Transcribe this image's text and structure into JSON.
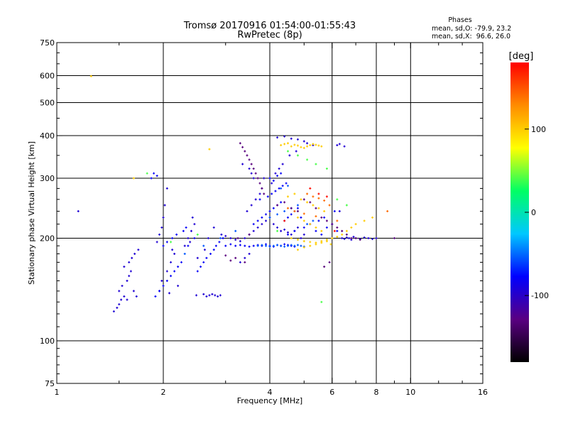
{
  "title": "Tromsø 20170916 01:54:00-01:55:43",
  "subtitle": "RwPretec (8p)",
  "phases_box": {
    "heading": "Phases",
    "line_o": "mean, sd,O: -79.9, 23.2",
    "line_x": "mean, sd,X:  96.6, 26.0"
  },
  "chart_data": {
    "type": "scatter",
    "xlabel": "Frequency [MHz]",
    "ylabel": "Stationary phase Virtual Height [km]",
    "x_scale": "log",
    "y_scale": "log",
    "xlim": [
      1,
      16
    ],
    "ylim": [
      75,
      750
    ],
    "x_ticks": [
      1,
      2,
      4,
      6,
      8,
      10,
      16
    ],
    "x_tick_labels": [
      "1",
      "2",
      "4",
      "6",
      "8",
      "10",
      "16"
    ],
    "x_gridlines": [
      2,
      4,
      6,
      8,
      10
    ],
    "y_ticks": [
      75,
      100,
      200,
      300,
      400,
      500,
      600,
      750
    ],
    "y_tick_labels": [
      "75",
      "100",
      "200",
      "300",
      "400",
      "500",
      "600",
      "750"
    ],
    "y_gridlines": [
      100,
      200,
      300,
      400,
      500,
      600
    ],
    "grid": true,
    "colorbar": {
      "label": "[deg]",
      "range": [
        -180,
        180
      ],
      "ticks": [
        100,
        0,
        -100
      ],
      "tick_labels": [
        "100",
        "0",
        "-100"
      ],
      "colormap": [
        "#000000",
        "#5a0082",
        "#0000ff",
        "#00c8ff",
        "#00ff64",
        "#ffff00",
        "#ff8c00",
        "#ff0000"
      ]
    },
    "series": [
      {
        "phase_deg": -95,
        "x": [
          1.45,
          1.48,
          1.5,
          1.52,
          1.55,
          1.5,
          1.53,
          1.58,
          1.6,
          1.62,
          1.65,
          1.68,
          1.6,
          1.63,
          1.66,
          1.7,
          1.55,
          1.58,
          1.92,
          1.95,
          1.98,
          2.0,
          2.02,
          2.05,
          1.95,
          1.98,
          2.05,
          2.1,
          2.15,
          2.2,
          2.08,
          2.12,
          2.3,
          2.35,
          2.4,
          2.45,
          2.5,
          2.38,
          2.42,
          2.48,
          2.6,
          2.65,
          2.7,
          2.75,
          2.8,
          2.85,
          2.9,
          2.62,
          2.68,
          2.78,
          2.92,
          3.0,
          3.1,
          3.2,
          3.3,
          3.4,
          3.5,
          3.6,
          3.7,
          3.8,
          3.9,
          4.0,
          4.1,
          4.2,
          4.3,
          4.4,
          4.5,
          4.6,
          4.7,
          4.8,
          4.9,
          5.0,
          3.3,
          3.4,
          3.5,
          3.45,
          3.55,
          3.65,
          3.75,
          3.8,
          3.85,
          4.05,
          4.15,
          4.25,
          4.35,
          4.55,
          4.75,
          3.35,
          3.5,
          3.55,
          3.6,
          4.2,
          4.4,
          4.6,
          4.8,
          5.0,
          5.1,
          5.3,
          6.4,
          6.5,
          6.6,
          6.7,
          6.8,
          6.9,
          7.0,
          7.2,
          7.4,
          7.6,
          7.8,
          8.0,
          6.2,
          6.3,
          6.5,
          6.3,
          1.15
        ],
        "y": [
          122,
          125,
          128,
          132,
          135,
          140,
          145,
          150,
          155,
          160,
          140,
          135,
          170,
          175,
          180,
          185,
          165,
          132,
          195,
          205,
          215,
          230,
          250,
          280,
          140,
          150,
          160,
          170,
          180,
          145,
          138,
          185,
          190,
          200,
          210,
          220,
          175,
          195,
          230,
          136,
          137,
          135,
          136,
          137,
          136,
          135,
          136,
          185,
          200,
          215,
          205,
          203,
          200,
          198,
          196,
          200,
          205,
          210,
          215,
          220,
          225,
          230,
          220,
          215,
          210,
          212,
          208,
          205,
          210,
          215,
          200,
          205,
          170,
          175,
          180,
          240,
          250,
          260,
          270,
          280,
          300,
          290,
          310,
          320,
          330,
          350,
          360,
          330,
          320,
          310,
          300,
          395,
          398,
          392,
          390,
          385,
          380,
          375,
          200,
          199,
          201,
          200,
          198,
          202,
          200,
          199,
          201,
          200,
          199,
          200,
          375,
          378,
          372,
          240,
          240
        ]
      },
      {
        "phase_deg": -80,
        "x": [
          1.9,
          1.95,
          2.0,
          2.05,
          2.1,
          2.15,
          2.2,
          2.25,
          2.0,
          2.05,
          2.12,
          2.18,
          2.28,
          2.32,
          2.5,
          2.55,
          2.6,
          2.65,
          2.72,
          2.78,
          2.82,
          2.88,
          2.95,
          3.0,
          3.1,
          3.2,
          3.3,
          3.4,
          3.5,
          3.6,
          3.7,
          3.8,
          3.9,
          4.0,
          4.1,
          4.2,
          4.3,
          4.4,
          4.5,
          4.6,
          4.7,
          3.6,
          3.7,
          3.8,
          3.9,
          4.0,
          4.1,
          4.2,
          4.3,
          4.4,
          4.5,
          4.6,
          4.7,
          4.8,
          4.9,
          3.75,
          3.95,
          4.05,
          4.15,
          4.25,
          4.35,
          4.45,
          4.0,
          4.1,
          4.2,
          4.3,
          4.5,
          4.7,
          5.0,
          5.2,
          5.4,
          5.6,
          5.8,
          6.0,
          6.2,
          5.5,
          5.7,
          6.1,
          1.85,
          1.88,
          1.92,
          2.35,
          2.45
        ],
        "y": [
          135,
          140,
          145,
          150,
          155,
          160,
          165,
          170,
          190,
          195,
          200,
          205,
          210,
          215,
          160,
          165,
          170,
          175,
          180,
          185,
          190,
          195,
          200,
          190,
          192,
          190,
          191,
          190,
          189,
          190,
          191,
          190,
          192,
          190,
          189,
          191,
          190,
          192,
          191,
          190,
          189,
          220,
          225,
          230,
          235,
          240,
          245,
          250,
          255,
          225,
          230,
          235,
          240,
          245,
          230,
          260,
          265,
          270,
          275,
          280,
          285,
          290,
          300,
          295,
          305,
          310,
          205,
          210,
          215,
          220,
          210,
          205,
          215,
          220,
          210,
          225,
          230,
          240,
          300,
          310,
          305,
          190,
          200
        ]
      },
      {
        "phase_deg": -55,
        "x": [
          3.7,
          3.8,
          3.9,
          4.0,
          4.1,
          4.2,
          4.3,
          4.4,
          4.5,
          4.6,
          4.7,
          4.8,
          4.9,
          5.0,
          4.0,
          4.2,
          4.4,
          4.6,
          4.8,
          4.3,
          4.5,
          2.3,
          2.6,
          2.9,
          3.2,
          5.1,
          5.3
        ],
        "y": [
          190,
          191,
          190,
          189,
          190,
          191,
          190,
          189,
          190,
          191,
          190,
          191,
          190,
          189,
          230,
          235,
          240,
          245,
          250,
          280,
          285,
          180,
          190,
          200,
          210,
          220,
          225
        ]
      },
      {
        "phase_deg": -130,
        "x": [
          3.3,
          3.35,
          3.4,
          3.45,
          3.5,
          3.55,
          3.6,
          3.65,
          3.7,
          3.75,
          3.8,
          3.85,
          4.2,
          4.4,
          4.6,
          4.8,
          5.0,
          5.2,
          5.4,
          5.6,
          5.8,
          6.0,
          6.2,
          6.4,
          6.6,
          6.8,
          7.0,
          7.2,
          5.7,
          5.9,
          9.0,
          3.1,
          3.2,
          3.4,
          3.0,
          3.25,
          3.5
        ],
        "y": [
          380,
          370,
          360,
          350,
          340,
          330,
          320,
          310,
          300,
          290,
          280,
          270,
          250,
          255,
          245,
          240,
          260,
          255,
          245,
          230,
          225,
          220,
          215,
          210,
          205,
          200,
          200,
          198,
          165,
          170,
          200,
          172,
          175,
          170,
          178,
          200,
          205
        ]
      },
      {
        "phase_deg": 100,
        "x": [
          4.3,
          4.4,
          4.5,
          4.6,
          4.7,
          4.8,
          4.9,
          5.0,
          5.1,
          5.2,
          5.3,
          5.4,
          5.5,
          5.6,
          4.5,
          4.7,
          4.9,
          5.1,
          5.3,
          5.5,
          5.7,
          4.8,
          5.0,
          5.2,
          5.4,
          5.6,
          4.6,
          4.8,
          5.0,
          5.2,
          5.4,
          5.6,
          5.8,
          6.0,
          6.2,
          6.4,
          6.6,
          6.8,
          7.0,
          7.4,
          7.8,
          4.8,
          5.0,
          5.2,
          5.4,
          5.6,
          5.8,
          5.95,
          2.7,
          1.65,
          1.25
        ],
        "y": [
          375,
          378,
          380,
          372,
          376,
          374,
          370,
          368,
          372,
          375,
          378,
          376,
          374,
          372,
          265,
          270,
          260,
          255,
          250,
          245,
          240,
          230,
          225,
          220,
          215,
          210,
          200,
          198,
          196,
          195,
          194,
          196,
          198,
          200,
          202,
          205,
          210,
          215,
          220,
          225,
          230,
          185,
          188,
          190,
          192,
          194,
          196,
          192,
          365,
          300,
          598
        ]
      },
      {
        "phase_deg": 140,
        "x": [
          5.1,
          5.3,
          5.5,
          5.7,
          5.9,
          4.5,
          4.7,
          5.0,
          5.4,
          6.2,
          8.6
        ],
        "y": [
          270,
          265,
          262,
          258,
          250,
          245,
          240,
          236,
          232,
          225,
          240
        ]
      },
      {
        "phase_deg": 175,
        "x": [
          5.2,
          5.5,
          5.8,
          4.4,
          6.1
        ],
        "y": [
          280,
          270,
          265,
          225,
          210
        ]
      },
      {
        "phase_deg": 40,
        "x": [
          4.5,
          4.8,
          5.1,
          5.4,
          5.8,
          6.2,
          6.6,
          1.8,
          2.1,
          2.5,
          4.2,
          5.6
        ],
        "y": [
          360,
          350,
          340,
          330,
          320,
          260,
          250,
          310,
          195,
          205,
          210,
          130
        ]
      }
    ]
  }
}
